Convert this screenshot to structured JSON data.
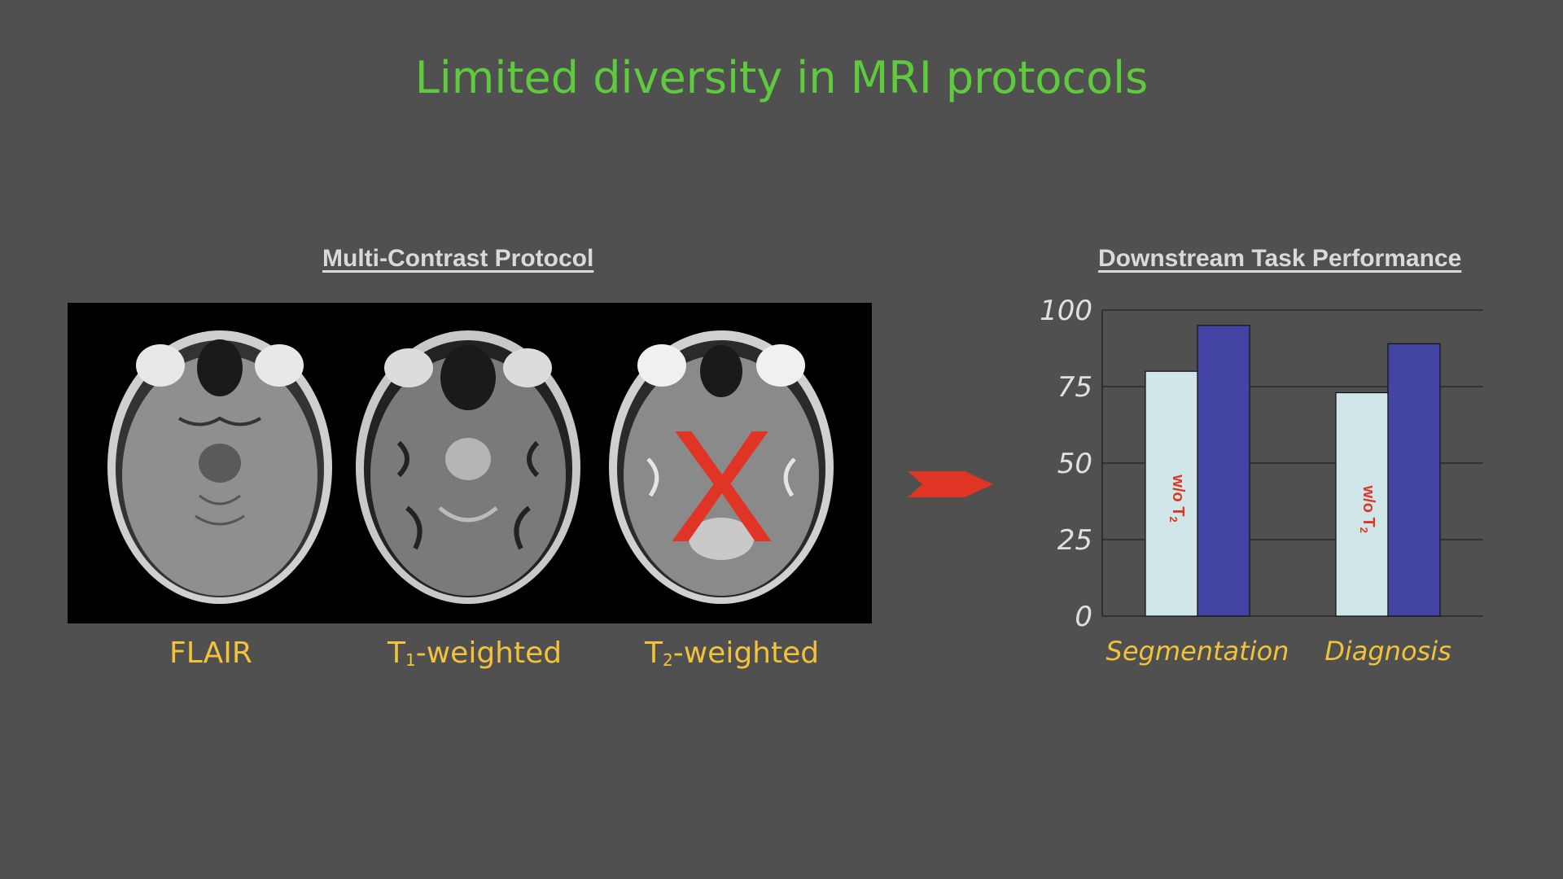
{
  "title": "Limited diversity in MRI protocols",
  "left_section": {
    "heading": "Multi-Contrast Protocol",
    "labels": {
      "flair": "FLAIR",
      "t1_prefix": "T",
      "t1_sub": "1",
      "t1_suffix": "-weighted",
      "t2_prefix": "T",
      "t2_sub": "2",
      "t2_suffix": "-weighted"
    },
    "removed_mark": "X"
  },
  "right_section": {
    "heading": "Downstream Task Performance"
  },
  "colors": {
    "background": "#505050",
    "title": "#5fca3e",
    "label": "#f2c23a",
    "removed": "#e03524",
    "bar_without": "#d0e6e8",
    "bar_with": "#4444a4"
  },
  "icons": [
    "arrow-right-icon",
    "cross-icon"
  ],
  "chart_data": {
    "type": "bar",
    "categories": [
      "Segmentation",
      "Diagnosis"
    ],
    "series": [
      {
        "name": "w/o T2",
        "values": [
          80,
          73
        ]
      },
      {
        "values": [
          95,
          89
        ]
      }
    ],
    "bar_labels": [
      {
        "text": "w/o T",
        "sub": "2"
      },
      {
        "text": "w/o T",
        "sub": "2"
      }
    ],
    "y_ticks": [
      "0",
      "25",
      "50",
      "75",
      "100"
    ],
    "ylim": [
      0,
      100
    ],
    "grid": true
  }
}
